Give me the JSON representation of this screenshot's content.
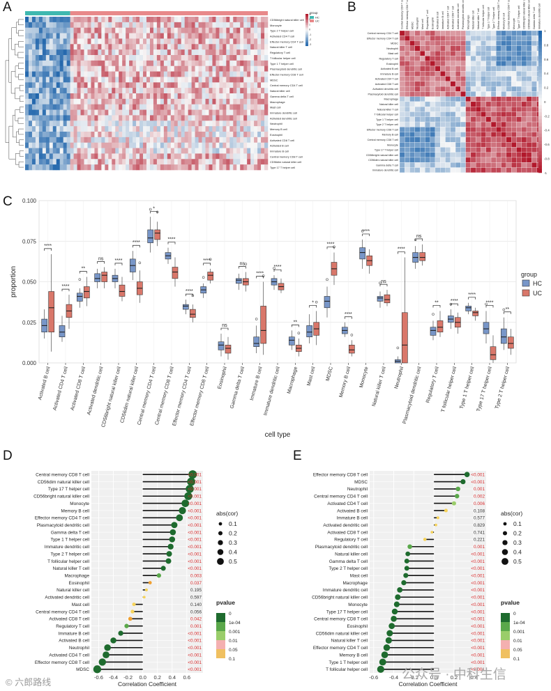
{
  "panels": [
    "A",
    "B",
    "C",
    "D",
    "E"
  ],
  "palette": {
    "hc": "#7896c8",
    "uc": "#d9776a",
    "red": "#b2182b",
    "blue": "#2166ac",
    "green_dark": "#1e6b2e",
    "green": "#5aa84a",
    "orange": "#f0a030",
    "sig_red": "#d62728"
  },
  "cells": [
    "Activated B cell",
    "Activated CD4 T cell",
    "Activated CD8 T cell",
    "Activated dendritic cell",
    "CD56bright natural killer cell",
    "CD56dim natural killer cell",
    "Central memory CD4 T cell",
    "Central memory CD8 T cell",
    "Effector memory CD4 T cell",
    "Effector memory CD8 T cell",
    "Eosinophil",
    "Gamma delta T cell",
    "Immature  B cell",
    "Immature dendritic cell",
    "Macrophage",
    "Mast cell",
    "MDSC",
    "Memory B cell",
    "Monocyte",
    "Natural killer T cell",
    "Neutrophil",
    "Plasmacytoid dendritic cell",
    "Regulatory T cell",
    "T follicular helper cell",
    "Type 1 T helper cell",
    "Type 17 T helper cell",
    "Type 2 T helper cell"
  ],
  "panel_a": {
    "rows": [
      "CD56bright natural killer cell",
      "Monocyte",
      "Type 2 T helper cell",
      "Activated CD4 T cell",
      "Effector memory CD4 T cell",
      "Natural killer T cell",
      "Regulatory T cell",
      "T follicular helper cell",
      "Type 1 T helper cell",
      "Plasmacytoid dendritic cell",
      "Effector memory CD8 T cell",
      "MDSC",
      "Central memory CD4 T cell",
      "Natural killer cell",
      "Gamma delta T cell",
      "Macrophage",
      "Mast cell",
      "Immature dendritic cell",
      "Activated dendritic cell",
      "Neutrophil",
      "Memory B cell",
      "Eosinophil",
      "Activated CD8 T cell",
      "Activated B cell",
      "Immature  B cell",
      "Central memory CD8 T cell",
      "CD56dim natural killer cell",
      "Type 17 T helper cell"
    ],
    "legend_title": "group",
    "legend_items": [
      "HC",
      "UC"
    ],
    "scale_title": "",
    "scale_ticks": [
      "3",
      "2",
      "1",
      "0",
      "-1",
      "-2",
      "-3"
    ]
  },
  "panel_b": {
    "labels": [
      "Central memory CD4 T cell",
      "Effector memory CD4 T cell",
      "MDSC",
      "Neutrophil",
      "Mast cell",
      "Regulatory T cell",
      "Eosinophil",
      "Activated B cell",
      "Immature  B cell",
      "Activated CD4 T cell",
      "Activated CD8 T cell",
      "Activated dendritic cell",
      "Plasmacytoid dendritic cell",
      "Macrophage",
      "Natural killer cell",
      "Natural killer T cell",
      "T follicular helper cell",
      "Type 1 T helper cell",
      "Type 2 T helper cell",
      "Effector memory CD8 T cell",
      "Memory B cell",
      "Central memory CD8 T cell",
      "Monocyte",
      "Type 17 T helper cell",
      "CD56bright natural killer cell",
      "CD56dim natural killer cell",
      "Gamma delta T cell",
      "Immature dendritic cell"
    ],
    "scale_ticks": [
      "1",
      "0.8",
      "0.6",
      "0.4",
      "0.2",
      "0",
      "-0.2",
      "-0.4",
      "-0.6",
      "-0.8",
      "-1"
    ]
  },
  "chart_data": [
    {
      "panel": "C",
      "type": "box",
      "ylabel": "proportion",
      "xlabel": "cell type",
      "yticks": [
        "0.000",
        "0.025",
        "0.050",
        "0.075",
        "0.100"
      ],
      "ylim": [
        0,
        0.1
      ],
      "legend_title": "group",
      "legend_items": [
        "HC",
        "UC"
      ],
      "categories": [
        "Activated B cell",
        "Activated CD4 T cell",
        "Activated CD8 T cell",
        "Activated dendritic cell",
        "CD56bright natural killer cell",
        "CD56dim natural killer cell",
        "Central memory CD4 T cell",
        "Central memory CD8 T cell",
        "Effector memory CD4 T cell",
        "Effector memory CD8 T cell",
        "Eosinophil",
        "Gamma delta T cell",
        "Immature  B cell",
        "Immature dendritic cell",
        "Macrophage",
        "Mast cell",
        "MDSC",
        "Memory B cell",
        "Monocyte",
        "Natural killer T cell",
        "Neutrophil",
        "Plasmacytoid dendritic cell",
        "Regulatory T cell",
        "T follicular helper cell",
        "Type 1 T helper cell",
        "Type 17 T helper cell",
        "Type 2 T helper cell"
      ],
      "significance": [
        "****",
        "****",
        "**",
        "ns",
        "****",
        "****",
        "*",
        "****",
        "****",
        "****",
        "ns",
        "ns",
        "****",
        "****",
        "**",
        "*",
        "****",
        "****",
        "****",
        "ns",
        "****",
        "ns",
        "**",
        "****",
        "****",
        "****",
        "**"
      ],
      "series": [
        {
          "name": "HC",
          "stats": [
            [
              0.015,
              0.019,
              0.023,
              0.027,
              0.033
            ],
            [
              0.013,
              0.016,
              0.019,
              0.023,
              0.029
            ],
            [
              0.034,
              0.038,
              0.041,
              0.043,
              0.046
            ],
            [
              0.046,
              0.05,
              0.052,
              0.055,
              0.058
            ],
            [
              0.046,
              0.05,
              0.052,
              0.054,
              0.058
            ],
            [
              0.051,
              0.056,
              0.06,
              0.064,
              0.069
            ],
            [
              0.068,
              0.074,
              0.077,
              0.082,
              0.09
            ],
            [
              0.061,
              0.064,
              0.066,
              0.068,
              0.071
            ],
            [
              0.03,
              0.033,
              0.035,
              0.036,
              0.039
            ],
            [
              0.04,
              0.043,
              0.045,
              0.047,
              0.049
            ],
            [
              0.004,
              0.008,
              0.011,
              0.013,
              0.018
            ],
            [
              0.045,
              0.049,
              0.051,
              0.052,
              0.055
            ],
            [
              0.006,
              0.01,
              0.012,
              0.016,
              0.023
            ],
            [
              0.045,
              0.048,
              0.05,
              0.052,
              0.054
            ],
            [
              0.008,
              0.011,
              0.014,
              0.016,
              0.02
            ],
            [
              0.012,
              0.016,
              0.019,
              0.023,
              0.03
            ],
            [
              0.028,
              0.034,
              0.038,
              0.041,
              0.047
            ],
            [
              0.016,
              0.018,
              0.02,
              0.022,
              0.025
            ],
            [
              0.058,
              0.064,
              0.068,
              0.071,
              0.076
            ],
            [
              0.034,
              0.038,
              0.04,
              0.041,
              0.044
            ],
            [
              0.0,
              0.0,
              0.001,
              0.002,
              0.004
            ],
            [
              0.058,
              0.062,
              0.065,
              0.068,
              0.072
            ],
            [
              0.014,
              0.017,
              0.02,
              0.022,
              0.026
            ],
            [
              0.021,
              0.025,
              0.027,
              0.029,
              0.033
            ],
            [
              0.03,
              0.032,
              0.034,
              0.035,
              0.037
            ],
            [
              0.012,
              0.018,
              0.021,
              0.025,
              0.032
            ],
            [
              0.008,
              0.012,
              0.016,
              0.021,
              0.028
            ]
          ]
        },
        {
          "name": "UC",
          "stats": [
            [
              0.007,
              0.019,
              0.034,
              0.044,
              0.067
            ],
            [
              0.021,
              0.028,
              0.032,
              0.036,
              0.042
            ],
            [
              0.035,
              0.04,
              0.044,
              0.047,
              0.053
            ],
            [
              0.046,
              0.05,
              0.054,
              0.056,
              0.059
            ],
            [
              0.038,
              0.041,
              0.044,
              0.048,
              0.053
            ],
            [
              0.037,
              0.042,
              0.046,
              0.05,
              0.057
            ],
            [
              0.072,
              0.076,
              0.08,
              0.082,
              0.087
            ],
            [
              0.047,
              0.052,
              0.056,
              0.059,
              0.065
            ],
            [
              0.025,
              0.028,
              0.03,
              0.033,
              0.036
            ],
            [
              0.049,
              0.051,
              0.054,
              0.056,
              0.058
            ],
            [
              0.002,
              0.006,
              0.009,
              0.011,
              0.016
            ],
            [
              0.044,
              0.048,
              0.05,
              0.052,
              0.056
            ],
            [
              0.005,
              0.012,
              0.02,
              0.035,
              0.05
            ],
            [
              0.043,
              0.045,
              0.047,
              0.049,
              0.052
            ],
            [
              0.004,
              0.007,
              0.009,
              0.011,
              0.015
            ],
            [
              0.011,
              0.017,
              0.021,
              0.025,
              0.032
            ],
            [
              0.048,
              0.054,
              0.058,
              0.062,
              0.068
            ],
            [
              0.004,
              0.006,
              0.008,
              0.011,
              0.014
            ],
            [
              0.055,
              0.06,
              0.063,
              0.066,
              0.07
            ],
            [
              0.035,
              0.037,
              0.039,
              0.042,
              0.045
            ],
            [
              0.0,
              0.0,
              0.011,
              0.031,
              0.065
            ],
            [
              0.06,
              0.063,
              0.065,
              0.068,
              0.073
            ],
            [
              0.016,
              0.019,
              0.022,
              0.026,
              0.032
            ],
            [
              0.018,
              0.022,
              0.025,
              0.028,
              0.031
            ],
            [
              0.026,
              0.029,
              0.031,
              0.032,
              0.034
            ],
            [
              0.0,
              0.002,
              0.005,
              0.01,
              0.017
            ],
            [
              0.005,
              0.009,
              0.012,
              0.016,
              0.021
            ]
          ]
        }
      ]
    },
    {
      "panel": "D",
      "type": "lollipop",
      "xlabel": "Correlation Coefficient",
      "xticks": [
        "-0.6",
        "-0.4",
        "-0.2",
        "0.0",
        "0.2",
        "0.4",
        "0.6"
      ],
      "xlim": [
        -0.7,
        0.82
      ],
      "legend_size_title": "abs(cor)",
      "legend_size_items": [
        "0.1",
        "0.2",
        "0.3",
        "0.4",
        "0.5"
      ],
      "legend_color_title": "pvalue",
      "legend_color_items": [
        "0",
        "1e-04",
        "0.001",
        "0.01",
        "0.05",
        "0.1"
      ],
      "items": [
        {
          "label": "Central memory CD8 T cell",
          "value": 0.68,
          "p": "<0.001"
        },
        {
          "label": "CD56dim natural killer cell",
          "value": 0.66,
          "p": "<0.001"
        },
        {
          "label": "Type 17 T helper cell",
          "value": 0.64,
          "p": "<0.001"
        },
        {
          "label": "CD56bright natural killer cell",
          "value": 0.62,
          "p": "<0.001"
        },
        {
          "label": "Monocyte",
          "value": 0.58,
          "p": "<0.001"
        },
        {
          "label": "Memory B cell",
          "value": 0.54,
          "p": "<0.001"
        },
        {
          "label": "Effector memory CD4 T cell",
          "value": 0.5,
          "p": "<0.001"
        },
        {
          "label": "Plasmacytoid dendritic cell",
          "value": 0.43,
          "p": "<0.001"
        },
        {
          "label": "Gamma delta T cell",
          "value": 0.41,
          "p": "<0.001"
        },
        {
          "label": "Type 1 T helper cell",
          "value": 0.4,
          "p": "<0.001"
        },
        {
          "label": "Immature dendritic cell",
          "value": 0.38,
          "p": "<0.001"
        },
        {
          "label": "Type 2 T helper cell",
          "value": 0.36,
          "p": "<0.001"
        },
        {
          "label": "T follicular helper cell",
          "value": 0.35,
          "p": "<0.001"
        },
        {
          "label": "Natural killer T cell",
          "value": 0.28,
          "p": "<0.001"
        },
        {
          "label": "Macrophage",
          "value": 0.22,
          "p": "0.003"
        },
        {
          "label": "Eosinophil",
          "value": 0.1,
          "p": "0.037"
        },
        {
          "label": "Natural killer cell",
          "value": 0.05,
          "p": "0.195"
        },
        {
          "label": "Activated dendritic cell",
          "value": 0.02,
          "p": "0.597"
        },
        {
          "label": "Mast cell",
          "value": -0.12,
          "p": "0.140"
        },
        {
          "label": "Central memory CD4 T cell",
          "value": -0.14,
          "p": "0.056"
        },
        {
          "label": "Activated CD8 T cell",
          "value": -0.17,
          "p": "0.042"
        },
        {
          "label": "Regulatory T cell",
          "value": -0.22,
          "p": "0.001"
        },
        {
          "label": "Immature  B cell",
          "value": -0.3,
          "p": "<0.001"
        },
        {
          "label": "Activated B cell",
          "value": -0.4,
          "p": "<0.001"
        },
        {
          "label": "Neutrophil",
          "value": -0.48,
          "p": "<0.001"
        },
        {
          "label": "Activated CD4 T cell",
          "value": -0.5,
          "p": "<0.001"
        },
        {
          "label": "Effector memory CD8 T cell",
          "value": -0.55,
          "p": "<0.001"
        },
        {
          "label": "MDSC",
          "value": -0.62,
          "p": "<0.001"
        }
      ]
    },
    {
      "panel": "E",
      "type": "lollipop",
      "xlabel": "Correlation Coefficient",
      "xticks": [
        "-0.6",
        "-0.4",
        "-0.2",
        "0.0",
        "0.2",
        "0.4"
      ],
      "xlim": [
        -0.64,
        0.52
      ],
      "legend_size_title": "abs(cor)",
      "legend_size_items": [
        "0.1",
        "0.2",
        "0.3",
        "0.4",
        "0.5"
      ],
      "legend_color_title": "pvalue",
      "legend_color_items": [
        "0",
        "1e-04",
        "0.001",
        "0.01",
        "0.05",
        "0.1"
      ],
      "items": [
        {
          "label": "Effector memory CD8 T cell",
          "value": 0.33,
          "p": "<0.001"
        },
        {
          "label": "MDSC",
          "value": 0.29,
          "p": "<0.001"
        },
        {
          "label": "Neutrophil",
          "value": 0.24,
          "p": "0.001"
        },
        {
          "label": "Central memory CD4 T cell",
          "value": 0.23,
          "p": "0.002"
        },
        {
          "label": "Activated CD4 T cell",
          "value": 0.2,
          "p": "0.006"
        },
        {
          "label": "Activated B cell",
          "value": 0.12,
          "p": "0.108"
        },
        {
          "label": "Immature  B cell",
          "value": 0.04,
          "p": "0.577"
        },
        {
          "label": "Activated dendritic cell",
          "value": 0.02,
          "p": "0.829"
        },
        {
          "label": "Activated CD8 T cell",
          "value": -0.02,
          "p": "0.741"
        },
        {
          "label": "Regulatory T cell",
          "value": -0.09,
          "p": "0.221"
        },
        {
          "label": "Plasmacytoid dendritic cell",
          "value": -0.24,
          "p": "0.001"
        },
        {
          "label": "Natural killer cell",
          "value": -0.26,
          "p": "<0.001"
        },
        {
          "label": "Gamma delta T cell",
          "value": -0.27,
          "p": "<0.001"
        },
        {
          "label": "Type 2 T helper cell",
          "value": -0.27,
          "p": "<0.001"
        },
        {
          "label": "Mast cell",
          "value": -0.28,
          "p": "<0.001"
        },
        {
          "label": "Macrophage",
          "value": -0.3,
          "p": "<0.001"
        },
        {
          "label": "Immature dendritic cell",
          "value": -0.34,
          "p": "<0.001"
        },
        {
          "label": "CD56bright natural killer cell",
          "value": -0.36,
          "p": "<0.001"
        },
        {
          "label": "Monocyte",
          "value": -0.37,
          "p": "<0.001"
        },
        {
          "label": "Type 17 T helper cell",
          "value": -0.39,
          "p": "<0.001"
        },
        {
          "label": "Central memory CD8 T cell",
          "value": -0.4,
          "p": "<0.001"
        },
        {
          "label": "Eosinophil",
          "value": -0.42,
          "p": "<0.001"
        },
        {
          "label": "CD56dim natural killer cell",
          "value": -0.44,
          "p": "<0.001"
        },
        {
          "label": "Natural killer T cell",
          "value": -0.45,
          "p": "<0.001"
        },
        {
          "label": "Effector memory CD4 T cell",
          "value": -0.47,
          "p": "<0.001"
        },
        {
          "label": "Memory B cell",
          "value": -0.49,
          "p": "<0.001"
        },
        {
          "label": "Type 1 T helper cell",
          "value": -0.51,
          "p": "<0.001"
        },
        {
          "label": "T follicular helper cell",
          "value": -0.53,
          "p": "<0.001"
        }
      ]
    }
  ],
  "watermarks": {
    "left": "© 六郎路线",
    "right": "公众号 · 中科生信"
  }
}
